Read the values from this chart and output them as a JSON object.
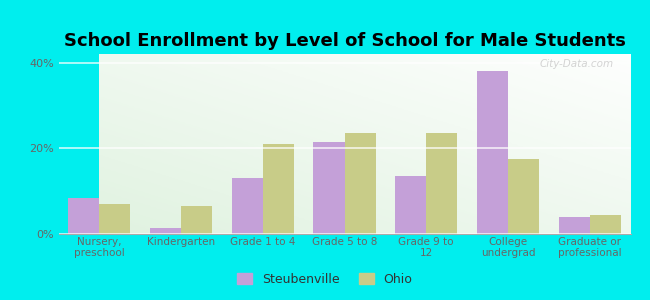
{
  "title": "School Enrollment by Level of School for Male Students",
  "categories": [
    "Nursery,\npreschool",
    "Kindergarten",
    "Grade 1 to 4",
    "Grade 5 to 8",
    "Grade 9 to\n12",
    "College\nundergrad",
    "Graduate or\nprofessional"
  ],
  "steubenville": [
    8.5,
    1.5,
    13.0,
    21.5,
    13.5,
    38.0,
    4.0
  ],
  "ohio": [
    7.0,
    6.5,
    21.0,
    23.5,
    23.5,
    17.5,
    4.5
  ],
  "steubenville_color": "#c4a0d8",
  "ohio_color": "#c8cc88",
  "background_outer": "#00eeee",
  "ylim": [
    0,
    42
  ],
  "yticks": [
    0,
    20,
    40
  ],
  "ytick_labels": [
    "0%",
    "20%",
    "40%"
  ],
  "bar_width": 0.38,
  "legend_labels": [
    "Steubenville",
    "Ohio"
  ],
  "watermark": "City-Data.com",
  "title_fontsize": 13,
  "tick_fontsize": 8
}
